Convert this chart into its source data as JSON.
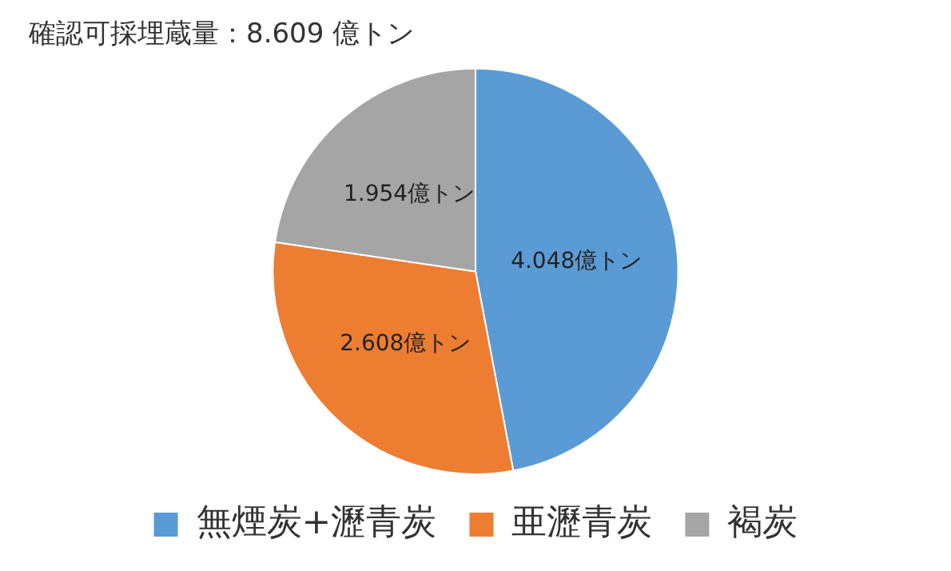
{
  "chart_data": {
    "type": "pie",
    "title": "確認可採埋蔵量：8.609 億トン",
    "categories": [
      "無煙炭+瀝青炭",
      "亜瀝青炭",
      "褐炭"
    ],
    "values": [
      4.048,
      2.608,
      1.954
    ],
    "colors": [
      "#5b9bd5",
      "#ed7d31",
      "#a5a5a5"
    ],
    "value_labels": [
      "4.048億トン",
      "2.608億トン",
      "1.954億トン"
    ],
    "legend": "bottom"
  }
}
